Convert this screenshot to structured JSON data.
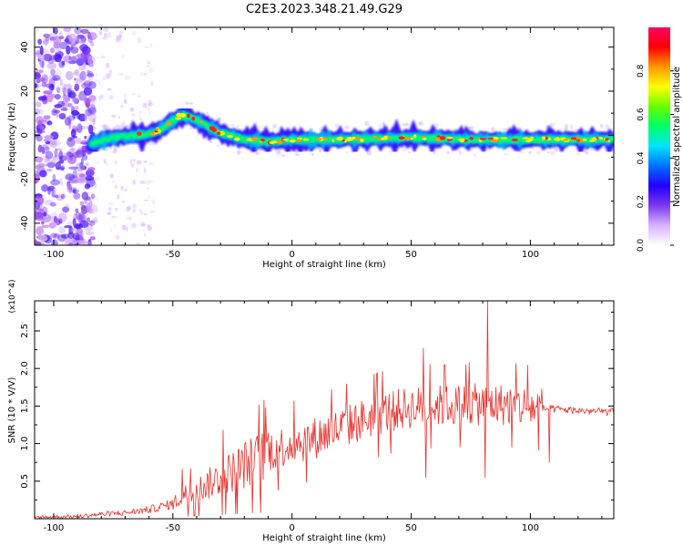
{
  "title": "C2E3.2023.348.21.49.G29",
  "chart_data": [
    {
      "type": "heatmap",
      "xlabel": "Height of straight line (km)",
      "ylabel": "Frequency (Hz)",
      "xlim": [
        -108,
        135
      ],
      "ylim": [
        -50,
        49
      ],
      "xticks": [
        "-100",
        "-50",
        "0",
        "50",
        "100"
      ],
      "xtick_values": [
        -100,
        -50,
        0,
        50,
        100
      ],
      "yticks": [
        "-40",
        "-20",
        "0",
        "20",
        "40"
      ],
      "ytick_values": [
        -40,
        -20,
        0,
        20,
        40
      ],
      "ridge": {
        "x": [
          -84,
          -75,
          -65,
          -58,
          -52,
          -47,
          -42,
          -37,
          -30,
          -20,
          -10,
          0,
          20,
          50,
          75,
          100,
          135
        ],
        "freq_hz": [
          -4,
          -1,
          0,
          1,
          5,
          9,
          8,
          5,
          1,
          -2,
          -3,
          -2,
          -2,
          -1,
          -2,
          -2,
          -2
        ]
      },
      "colorbar": {
        "label": "Normalized spectral amplitude",
        "range": [
          0,
          1
        ],
        "ticks": [
          "0.0",
          "0.2",
          "0.4",
          "0.6",
          "0.8"
        ],
        "tick_values": [
          0,
          0.2,
          0.4,
          0.6,
          0.8
        ],
        "colors": [
          "#ffffff",
          "#d8b4fe",
          "#7c3aed",
          "#2200ff",
          "#0070ff",
          "#00e5ff",
          "#00ff66",
          "#66ff00",
          "#ffff00",
          "#ff9900",
          "#ff0000",
          "#ff0066"
        ]
      }
    },
    {
      "type": "line",
      "xlabel": "Height of straight line (km)",
      "ylabel": "SNR (10 * V/V)",
      "y_multiplier": "(x10^4)",
      "xlim": [
        -108,
        135
      ],
      "ylim": [
        0,
        2.9
      ],
      "xticks": [
        "-100",
        "-50",
        "0",
        "50",
        "100"
      ],
      "xtick_values": [
        -100,
        -50,
        0,
        50,
        100
      ],
      "yticks": [
        "0.5",
        "1.0",
        "1.5",
        "2.0",
        "2.5"
      ],
      "ytick_values": [
        0.5,
        1.0,
        1.5,
        2.0,
        2.5
      ],
      "color": "#e8302a",
      "trend": {
        "x": [
          -108,
          -90,
          -80,
          -70,
          -60,
          -50,
          -45,
          -40,
          -30,
          -20,
          -12,
          -10,
          0,
          10,
          20,
          30,
          40,
          50,
          60,
          75,
          90,
          100,
          110,
          120,
          135
        ],
        "y": [
          0.02,
          0.03,
          0.06,
          0.08,
          0.12,
          0.2,
          0.32,
          0.38,
          0.55,
          0.72,
          0.82,
          0.9,
          1.0,
          1.08,
          1.2,
          1.32,
          1.42,
          1.48,
          1.5,
          1.52,
          1.52,
          1.48,
          1.46,
          1.44,
          1.42
        ]
      },
      "spikes": [
        {
          "x": -46,
          "y": 0.66
        },
        {
          "x": -29,
          "y": 1.18
        },
        {
          "x": -11,
          "y": 1.48
        },
        {
          "x": 55,
          "y": 2.27
        },
        {
          "x": 56,
          "y": 0.55
        },
        {
          "x": 64,
          "y": 2.05
        },
        {
          "x": 73,
          "y": 2.05
        },
        {
          "x": 82,
          "y": 2.9
        },
        {
          "x": 81,
          "y": 0.55
        },
        {
          "x": 108,
          "y": 0.75
        }
      ]
    }
  ]
}
